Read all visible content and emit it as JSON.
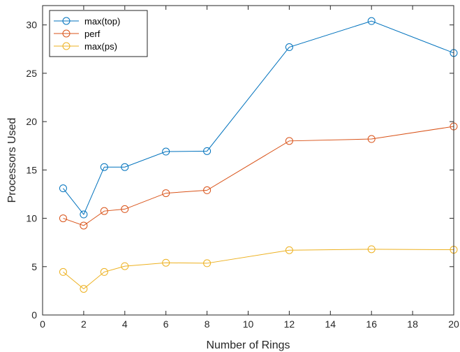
{
  "chart_data": {
    "type": "line",
    "title": "",
    "xlabel": "Number of Rings",
    "ylabel": "Processors Used",
    "xlim": [
      0,
      20
    ],
    "ylim": [
      0,
      32
    ],
    "xticks": [
      0,
      2,
      4,
      6,
      8,
      10,
      12,
      14,
      16,
      18,
      20
    ],
    "yticks": [
      0,
      5,
      10,
      15,
      20,
      25,
      30
    ],
    "grid": false,
    "legend_position": "top-left",
    "x": [
      1,
      2,
      3,
      4,
      6,
      8,
      12,
      16,
      20
    ],
    "series": [
      {
        "name": "max(top)",
        "color": "#0072BD",
        "marker": "circle",
        "values": [
          13.1,
          10.4,
          15.3,
          15.3,
          16.9,
          16.95,
          27.7,
          30.4,
          27.1
        ]
      },
      {
        "name": "perf",
        "color": "#D95319",
        "marker": "circle",
        "values": [
          10.0,
          9.25,
          10.75,
          10.95,
          12.6,
          12.9,
          18.0,
          18.2,
          19.5
        ]
      },
      {
        "name": "max(ps)",
        "color": "#EDB120",
        "marker": "circle",
        "values": [
          4.45,
          2.7,
          4.45,
          5.05,
          5.4,
          5.35,
          6.7,
          6.8,
          6.75
        ]
      }
    ]
  }
}
